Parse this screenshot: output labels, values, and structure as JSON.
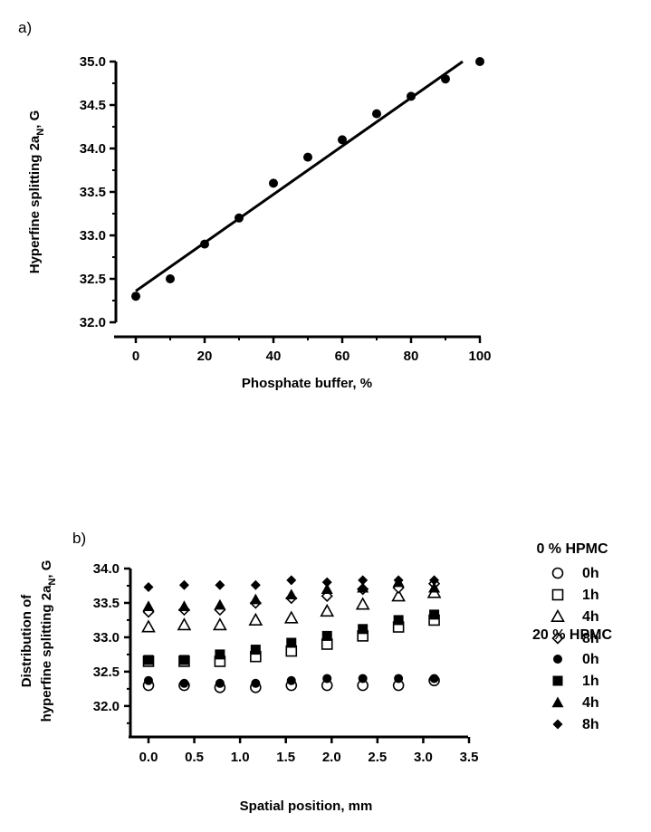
{
  "chart_data": [
    {
      "type": "scatter",
      "panel_label": "a)",
      "xlabel": "Phosphate buffer, %",
      "ylabel": "Hyperfine splitting 2a",
      "ylabel_sub": "N",
      "ylabel_tail": ", G",
      "xlim": [
        0,
        100
      ],
      "ylim": [
        32.0,
        35.0
      ],
      "xticks": [
        "0",
        "20",
        "40",
        "60",
        "80",
        "100"
      ],
      "yticks": [
        "32.0",
        "32.5",
        "33.0",
        "33.5",
        "34.0",
        "34.5",
        "35.0"
      ],
      "series": [
        {
          "marker": "filled-circle",
          "x": [
            0,
            10,
            20,
            30,
            40,
            50,
            60,
            70,
            80,
            90,
            100
          ],
          "y": [
            32.3,
            32.5,
            32.9,
            33.2,
            33.6,
            33.9,
            34.1,
            34.4,
            34.6,
            34.8,
            35.0
          ]
        }
      ],
      "fit_line": {
        "x": [
          0,
          95
        ],
        "y": [
          32.36,
          35.0
        ]
      }
    },
    {
      "type": "scatter",
      "panel_label": "b)",
      "xlabel": "Spatial position, mm",
      "ylabel_line1": "Distribution of",
      "ylabel_line2": "hyperfine splitting 2a",
      "ylabel_sub": "N",
      "ylabel_tail": ", G",
      "xlim": [
        -0.3,
        3.5
      ],
      "ylim": [
        31.55,
        34.0
      ],
      "xticks": [
        "0.0",
        "0.5",
        "1.0",
        "1.5",
        "2.0",
        "2.5",
        "3.0",
        "3.5"
      ],
      "yticks": [
        "32.0",
        "32.5",
        "33.0",
        "33.5",
        "34.0"
      ],
      "legend_groups": [
        "0 % HPMC",
        "20 % HPMC"
      ],
      "series": [
        {
          "name": "0h",
          "group": "0 % HPMC",
          "marker": "open-circle",
          "x": [
            0.0,
            0.39,
            0.78,
            1.17,
            1.56,
            1.95,
            2.34,
            2.73,
            3.12
          ],
          "y": [
            32.3,
            32.3,
            32.27,
            32.27,
            32.3,
            32.3,
            32.3,
            32.3,
            32.37
          ]
        },
        {
          "name": "1h",
          "group": "0 % HPMC",
          "marker": "open-square",
          "x": [
            0.0,
            0.39,
            0.78,
            1.17,
            1.56,
            1.95,
            2.34,
            2.73,
            3.12
          ],
          "y": [
            32.65,
            32.65,
            32.65,
            32.72,
            32.8,
            32.9,
            33.02,
            33.15,
            33.25
          ]
        },
        {
          "name": "4h",
          "group": "0 % HPMC",
          "marker": "open-triangle",
          "x": [
            0.0,
            0.39,
            0.78,
            1.17,
            1.56,
            1.95,
            2.34,
            2.73,
            3.12
          ],
          "y": [
            33.15,
            33.18,
            33.18,
            33.25,
            33.28,
            33.38,
            33.48,
            33.6,
            33.65
          ]
        },
        {
          "name": "8h",
          "group": "0 % HPMC",
          "marker": "open-diamond",
          "x": [
            0.0,
            0.39,
            0.78,
            1.17,
            1.56,
            1.95,
            2.34,
            2.73,
            3.12
          ],
          "y": [
            33.37,
            33.4,
            33.4,
            33.5,
            33.57,
            33.6,
            33.7,
            33.72,
            33.78
          ]
        },
        {
          "name": "0h",
          "group": "20 % HPMC",
          "marker": "filled-circle",
          "x": [
            0.0,
            0.39,
            0.78,
            1.17,
            1.56,
            1.95,
            2.34,
            2.73,
            3.12
          ],
          "y": [
            32.37,
            32.33,
            32.33,
            32.33,
            32.37,
            32.4,
            32.4,
            32.4,
            32.4
          ]
        },
        {
          "name": "1h",
          "group": "20 % HPMC",
          "marker": "filled-square",
          "x": [
            0.0,
            0.39,
            0.78,
            1.17,
            1.56,
            1.95,
            2.34,
            2.73,
            3.12
          ],
          "y": [
            32.67,
            32.67,
            32.75,
            32.82,
            32.92,
            33.02,
            33.12,
            33.25,
            33.33
          ]
        },
        {
          "name": "4h",
          "group": "20 % HPMC",
          "marker": "filled-triangle",
          "x": [
            0.0,
            0.39,
            0.78,
            1.17,
            1.56,
            1.95,
            2.34,
            2.73,
            3.12
          ],
          "y": [
            33.45,
            33.45,
            33.47,
            33.55,
            33.62,
            33.7,
            33.72,
            33.8,
            33.72
          ]
        },
        {
          "name": "8h",
          "group": "20 % HPMC",
          "marker": "filled-diamond",
          "x": [
            0.0,
            0.39,
            0.78,
            1.17,
            1.56,
            1.95,
            2.34,
            2.73,
            3.12
          ],
          "y": [
            33.73,
            33.76,
            33.76,
            33.76,
            33.83,
            33.8,
            33.83,
            33.83,
            33.83
          ]
        }
      ]
    }
  ]
}
